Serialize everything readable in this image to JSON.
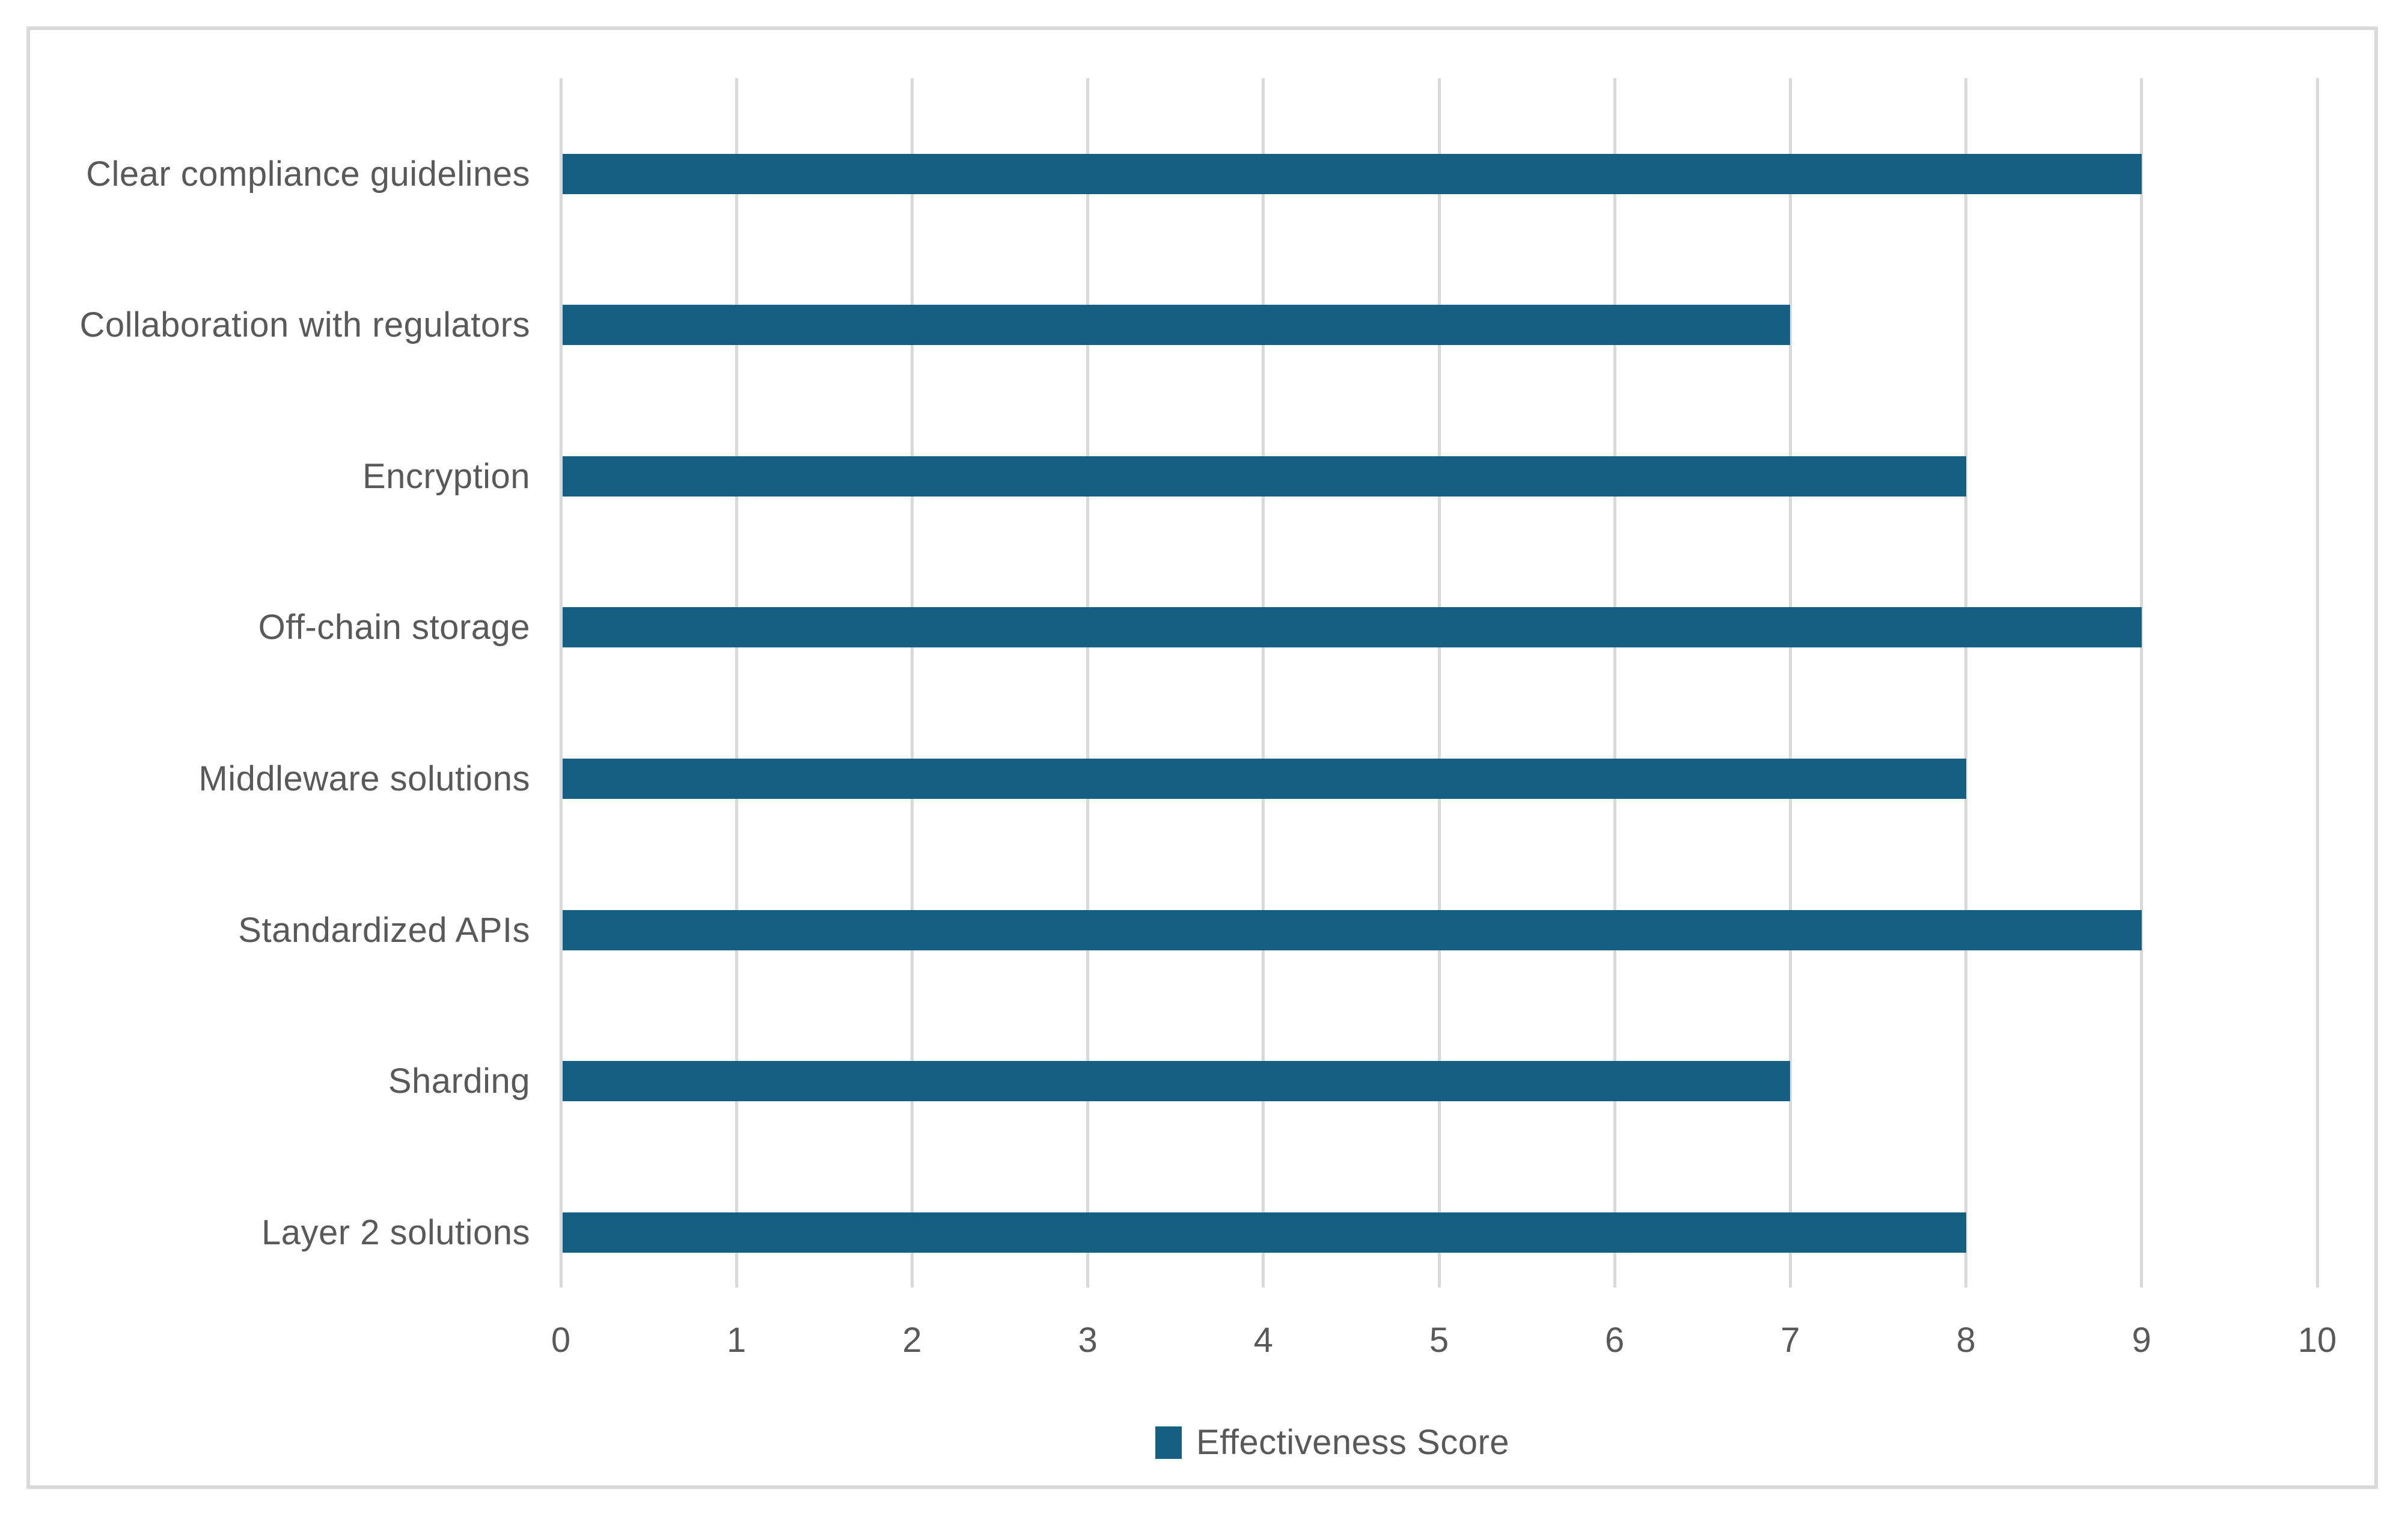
{
  "chart_data": {
    "type": "bar",
    "orientation": "horizontal",
    "title": "",
    "categories": [
      "Clear compliance guidelines",
      "Collaboration with regulators",
      "Encryption",
      "Off-chain storage",
      "Middleware solutions",
      "Standardized APIs",
      "Sharding",
      "Layer 2 solutions"
    ],
    "series": [
      {
        "name": "Effectiveness Score",
        "values": [
          9,
          7,
          8,
          9,
          8,
          9,
          7,
          8
        ]
      }
    ],
    "xlabel": "",
    "ylabel": "",
    "xlim": [
      0,
      10
    ],
    "xtick_step": 1,
    "tick_labels": [
      "0",
      "1",
      "2",
      "3",
      "4",
      "5",
      "6",
      "7",
      "8",
      "9",
      "10"
    ],
    "grid": "vertical",
    "legend": {
      "label": "Effectiveness Score",
      "position": "bottom"
    },
    "colors": {
      "bar": "#156082",
      "gridline": "#D9D9D9",
      "axis_text": "#595959",
      "chart_border": "#D9D9D9",
      "background": "#FFFFFF"
    }
  }
}
